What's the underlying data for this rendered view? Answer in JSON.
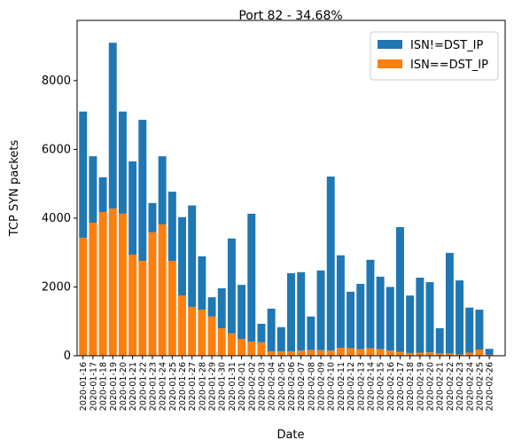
{
  "chart_data": {
    "type": "stacked_bar",
    "title": "Port 82 - 34.68%",
    "x_label": "Date",
    "y_label": "TCP SYN packets",
    "categories": [
      "2020-01-16",
      "2020-01-17",
      "2020-01-18",
      "2020-01-19",
      "2020-01-20",
      "2020-01-21",
      "2020-01-22",
      "2020-01-23",
      "2020-01-24",
      "2020-01-25",
      "2020-01-26",
      "2020-01-27",
      "2020-01-28",
      "2020-01-29",
      "2020-01-30",
      "2020-01-31",
      "2020-02-01",
      "2020-02-02",
      "2020-02-03",
      "2020-02-04",
      "2020-02-05",
      "2020-02-06",
      "2020-02-07",
      "2020-02-08",
      "2020-02-09",
      "2020-02-10",
      "2020-02-11",
      "2020-02-12",
      "2020-02-13",
      "2020-02-14",
      "2020-02-15",
      "2020-02-16",
      "2020-02-17",
      "2020-02-18",
      "2020-02-19",
      "2020-02-20",
      "2020-02-21",
      "2020-02-22",
      "2020-02-23",
      "2020-02-24",
      "2020-02-25",
      "2020-02-26"
    ],
    "series": [
      {
        "name": "ISN==DST_IP",
        "color": "#ff7f0e",
        "values": [
          3430,
          3870,
          4180,
          4280,
          4130,
          2940,
          2760,
          3590,
          3820,
          2760,
          1750,
          1420,
          1340,
          1140,
          800,
          650,
          490,
          410,
          390,
          130,
          130,
          130,
          150,
          170,
          160,
          150,
          230,
          220,
          190,
          220,
          190,
          150,
          110,
          80,
          90,
          100,
          70,
          70,
          40,
          90,
          180,
          30
        ]
      },
      {
        "name": "ISN!=DST_IP",
        "color": "#1f77b4",
        "values": [
          3670,
          1930,
          1010,
          4820,
          2970,
          2710,
          4100,
          850,
          1980,
          2010,
          2280,
          2950,
          1550,
          560,
          1160,
          2760,
          1570,
          3720,
          540,
          1240,
          700,
          2270,
          2280,
          970,
          2320,
          5060,
          2690,
          1640,
          1900,
          2570,
          2110,
          1850,
          3630,
          1670,
          2180,
          2040,
          730,
          2920,
          2150,
          1310,
          1160,
          170
        ]
      }
    ],
    "legend_order": [
      1,
      0
    ],
    "legend": "upper right",
    "ylim": [
      0,
      9750
    ],
    "yticks": [
      0,
      2000,
      4000,
      6000,
      8000
    ]
  }
}
